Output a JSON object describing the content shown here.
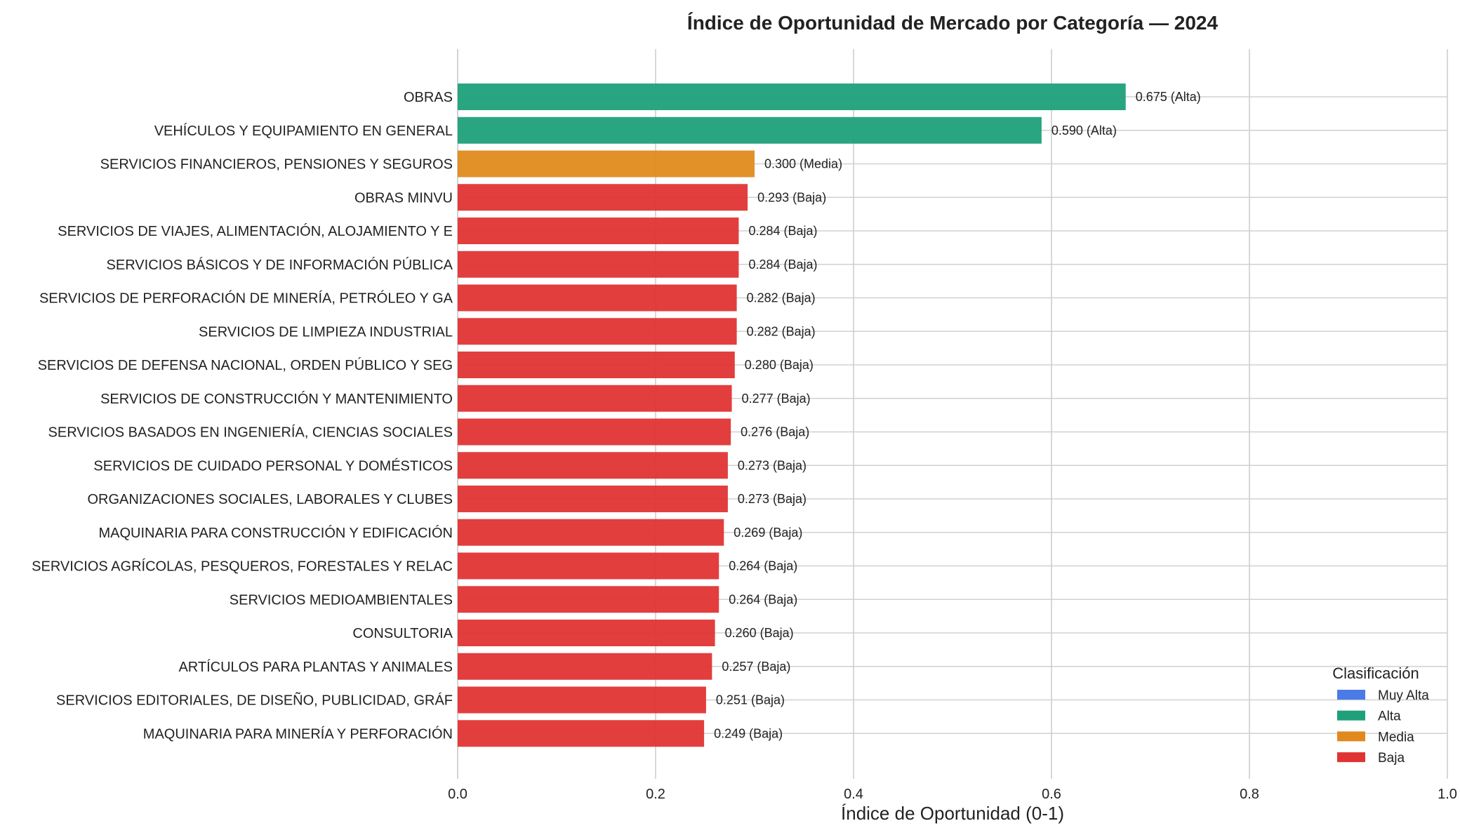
{
  "chart_data": {
    "type": "bar",
    "orientation": "horizontal",
    "title": "Índice de Oportunidad de Mercado por Categoría — 2024",
    "xlabel": "Índice de Oportunidad (0-1)",
    "ylabel": "",
    "xlim": [
      0,
      1
    ],
    "xticks": [
      "0.0",
      "0.2",
      "0.4",
      "0.6",
      "0.8",
      "1.0"
    ],
    "grid": true,
    "legend": {
      "title": "Clasificación",
      "placement": "bottom-right",
      "entries": [
        {
          "label": "Muy Alta",
          "color": "#4a7be8"
        },
        {
          "label": "Alta",
          "color": "#1fa07a"
        },
        {
          "label": "Media",
          "color": "#e08a1e"
        },
        {
          "label": "Baja",
          "color": "#e03434"
        }
      ]
    },
    "classification_colors": {
      "Muy Alta": "#4a7be8",
      "Alta": "#1fa07a",
      "Media": "#e08a1e",
      "Baja": "#e03434"
    },
    "categories": [
      "OBRAS",
      "VEHÍCULOS Y EQUIPAMIENTO EN GENERAL",
      "SERVICIOS FINANCIEROS, PENSIONES Y SEGUROS",
      "OBRAS MINVU",
      "SERVICIOS DE VIAJES, ALIMENTACIÓN, ALOJAMIENTO Y E",
      "SERVICIOS BÁSICOS Y DE INFORMACIÓN PÚBLICA",
      "SERVICIOS DE PERFORACIÓN DE MINERÍA, PETRÓLEO Y GA",
      "SERVICIOS DE LIMPIEZA INDUSTRIAL",
      "SERVICIOS DE DEFENSA NACIONAL, ORDEN PÚBLICO Y SEG",
      "SERVICIOS DE CONSTRUCCIÓN Y MANTENIMIENTO",
      "SERVICIOS BASADOS EN INGENIERÍA, CIENCIAS SOCIALES",
      "SERVICIOS DE CUIDADO PERSONAL Y DOMÉSTICOS",
      "ORGANIZACIONES SOCIALES, LABORALES Y CLUBES",
      "MAQUINARIA PARA CONSTRUCCIÓN Y EDIFICACIÓN",
      "SERVICIOS AGRÍCOLAS, PESQUEROS, FORESTALES Y RELAC",
      "SERVICIOS MEDIOAMBIENTALES",
      "CONSULTORIA",
      "ARTÍCULOS PARA PLANTAS Y ANIMALES",
      "SERVICIOS EDITORIALES, DE DISEÑO, PUBLICIDAD, GRÁF",
      "MAQUINARIA PARA MINERÍA Y PERFORACIÓN"
    ],
    "values": [
      0.675,
      0.59,
      0.3,
      0.293,
      0.284,
      0.284,
      0.282,
      0.282,
      0.28,
      0.277,
      0.276,
      0.273,
      0.273,
      0.269,
      0.264,
      0.264,
      0.26,
      0.257,
      0.251,
      0.249
    ],
    "classes": [
      "Alta",
      "Alta",
      "Media",
      "Baja",
      "Baja",
      "Baja",
      "Baja",
      "Baja",
      "Baja",
      "Baja",
      "Baja",
      "Baja",
      "Baja",
      "Baja",
      "Baja",
      "Baja",
      "Baja",
      "Baja",
      "Baja",
      "Baja"
    ],
    "data_labels": [
      "0.675 (Alta)",
      "0.590 (Alta)",
      "0.300 (Media)",
      "0.293 (Baja)",
      "0.284 (Baja)",
      "0.284 (Baja)",
      "0.282 (Baja)",
      "0.282 (Baja)",
      "0.280 (Baja)",
      "0.277 (Baja)",
      "0.276 (Baja)",
      "0.273 (Baja)",
      "0.273 (Baja)",
      "0.269 (Baja)",
      "0.264 (Baja)",
      "0.264 (Baja)",
      "0.260 (Baja)",
      "0.257 (Baja)",
      "0.251 (Baja)",
      "0.249 (Baja)"
    ]
  }
}
